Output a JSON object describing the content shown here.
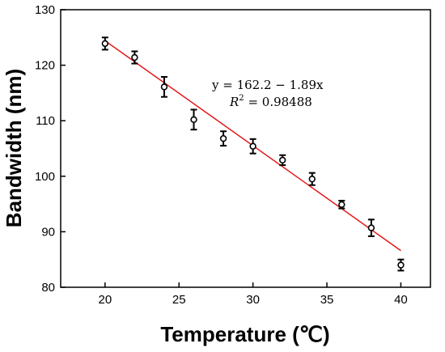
{
  "chart_data": {
    "type": "scatter",
    "xlabel": "Temperature (℃)",
    "ylabel": "Bandwidth (nm)",
    "xlim": [
      17,
      42
    ],
    "ylim": [
      80,
      130
    ],
    "xticks": [
      20,
      25,
      30,
      35,
      40
    ],
    "yticks": [
      80,
      90,
      100,
      110,
      120,
      130
    ],
    "grid": false,
    "series": [
      {
        "marker": "open-circle",
        "color": "#000000",
        "points": [
          {
            "x": 20,
            "y": 123.9,
            "err": 1.1
          },
          {
            "x": 22,
            "y": 121.4,
            "err": 1.1
          },
          {
            "x": 24,
            "y": 116.1,
            "err": 1.8
          },
          {
            "x": 26,
            "y": 110.2,
            "err": 1.8
          },
          {
            "x": 28,
            "y": 106.8,
            "err": 1.3
          },
          {
            "x": 30,
            "y": 105.4,
            "err": 1.3
          },
          {
            "x": 32,
            "y": 102.9,
            "err": 0.9
          },
          {
            "x": 34,
            "y": 99.5,
            "err": 1.1
          },
          {
            "x": 36,
            "y": 94.9,
            "err": 0.7
          },
          {
            "x": 38,
            "y": 90.7,
            "err": 1.5
          },
          {
            "x": 40,
            "y": 84.0,
            "err": 1.0
          }
        ]
      }
    ],
    "fit": {
      "color": "#e31a1c",
      "slope": -1.89,
      "intercept": 162.2,
      "x_range": [
        20,
        40
      ],
      "equation_text": "y = 162.2 − 1.89x",
      "r2_label": "R",
      "r2_sup": "2",
      "r2_value": " = 0.98488"
    }
  }
}
